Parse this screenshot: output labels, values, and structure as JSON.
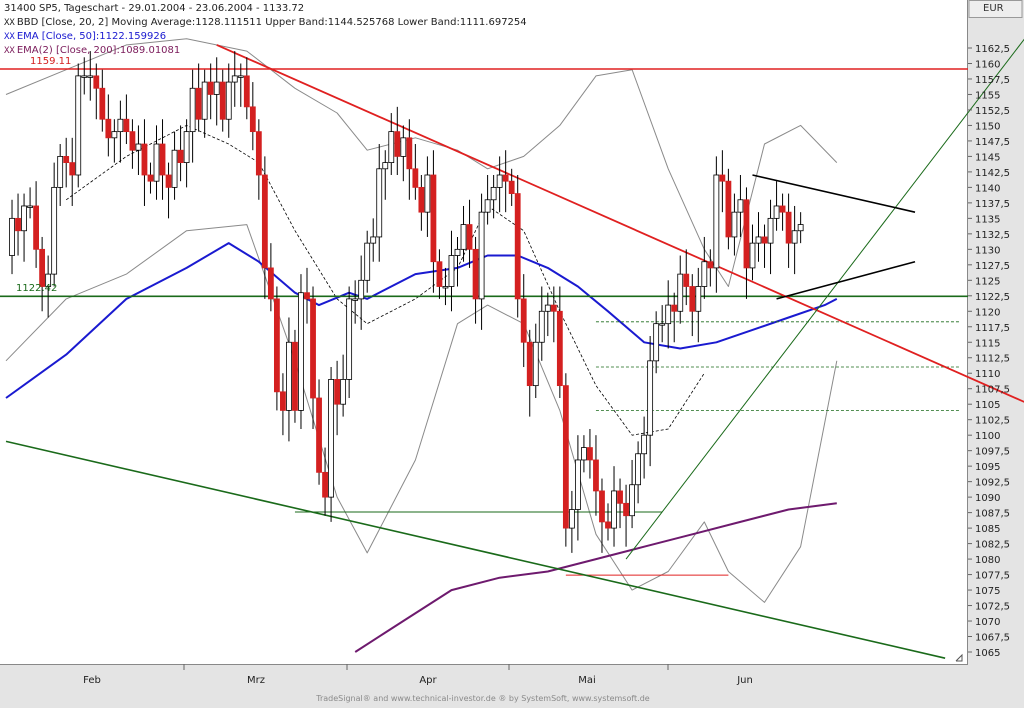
{
  "header": {
    "line1": "31400  SP5, Tageschart - 29.01.2004 - 23.06.2004 - 1133.72",
    "line2": "BBD [Close, 20, 2] Moving Average:1128.111511 Upper Band:1144.525768 Lower Band:1111.697254",
    "line3": "EMA [Close, 50]:1122.159926",
    "line4": "EMA(2) [Close, 200]:1089.01081",
    "xx": "XX"
  },
  "currency": "EUR",
  "levels": {
    "resistance": "1159.11",
    "support": "1122.42"
  },
  "footer": "TradeSignal® and www.technical-investor.de ® by SystemSoft, www.systemsoft.de",
  "colors": {
    "up_candle": "#ffffff",
    "down_candle": "#d42020",
    "wick": "#000000",
    "ema50": "#1a1ad0",
    "ema200": "#6e1a6e",
    "bollinger": "#8a8a8a",
    "ma20": "#000000",
    "trend_red": "#e02020",
    "trend_green": "#1a6a1a",
    "triangle": "#000000"
  },
  "chart_data": {
    "type": "candlestick",
    "title": "31400  SP5, Tageschart - 29.01.2004 - 23.06.2004 - 1133.72",
    "x_tick_labels": [
      "Feb",
      "Mrz",
      "Apr",
      "Mai",
      "Jun"
    ],
    "y_ticks": [
      "1162,5",
      "1160",
      "1157,5",
      "1155",
      "1152,5",
      "1150",
      "1147,5",
      "1145",
      "1142,5",
      "1140",
      "1137,5",
      "1135",
      "1132,5",
      "1130",
      "1127,5",
      "1125",
      "1122,5",
      "1120",
      "1117,5",
      "1115",
      "1112,5",
      "1110",
      "1107,5",
      "1105",
      "1102,5",
      "1100",
      "1097,5",
      "1095",
      "1092,5",
      "1090",
      "1087,5",
      "1085",
      "1082,5",
      "1080",
      "1077,5",
      "1075",
      "1072,5",
      "1070",
      "1067,5",
      "1065"
    ],
    "ylim": [
      1063.5,
      1164.5
    ],
    "candles_close": [
      1129,
      1135,
      1133,
      1137,
      1137,
      1130,
      1124,
      1126,
      1140,
      1145,
      1144,
      1142,
      1158,
      1158,
      1158,
      1156,
      1151,
      1148,
      1149,
      1151,
      1149,
      1146,
      1147,
      1142,
      1141,
      1147,
      1142,
      1140,
      1146,
      1144,
      1149,
      1156,
      1151,
      1157,
      1155,
      1157,
      1151,
      1157,
      1158,
      1158,
      1153,
      1149,
      1142,
      1127,
      1122,
      1107,
      1104,
      1115,
      1104,
      1123,
      1122,
      1106,
      1094,
      1090,
      1109,
      1105,
      1109,
      1122,
      1122,
      1125,
      1131,
      1132,
      1143,
      1144,
      1149,
      1145,
      1148,
      1143,
      1140,
      1136,
      1142,
      1128,
      1124,
      1124,
      1129,
      1130,
      1134,
      1130,
      1122,
      1136,
      1138,
      1140,
      1142,
      1141,
      1139,
      1122,
      1115,
      1108,
      1115,
      1120,
      1121,
      1120,
      1108,
      1085,
      1088,
      1096,
      1098,
      1096,
      1091,
      1086,
      1085,
      1091,
      1089,
      1087,
      1092,
      1097,
      1100,
      1112,
      1118,
      1118,
      1121,
      1120,
      1126,
      1124,
      1120,
      1124,
      1128,
      1127,
      1142,
      1141,
      1132,
      1136,
      1138,
      1127,
      1131,
      1132,
      1131,
      1135,
      1137,
      1136,
      1131,
      1133,
      1134
    ],
    "series": [
      {
        "name": "BBD Upper Band",
        "points": [
          [
            0,
            1155
          ],
          [
            10,
            1159
          ],
          [
            20,
            1163
          ],
          [
            30,
            1164
          ],
          [
            40,
            1162
          ],
          [
            48,
            1156
          ],
          [
            55,
            1152
          ],
          [
            60,
            1146
          ],
          [
            68,
            1148
          ],
          [
            75,
            1146
          ],
          [
            80,
            1143
          ],
          [
            86,
            1145
          ],
          [
            92,
            1150
          ],
          [
            98,
            1158
          ],
          [
            104,
            1159
          ],
          [
            110,
            1143
          ],
          [
            116,
            1130
          ],
          [
            120,
            1124
          ],
          [
            126,
            1147
          ],
          [
            132,
            1150
          ],
          [
            138,
            1144
          ]
        ]
      },
      {
        "name": "BBD Lower Band",
        "points": [
          [
            0,
            1112
          ],
          [
            10,
            1122
          ],
          [
            20,
            1126
          ],
          [
            30,
            1133
          ],
          [
            40,
            1134
          ],
          [
            48,
            1112
          ],
          [
            55,
            1090
          ],
          [
            60,
            1081
          ],
          [
            68,
            1096
          ],
          [
            75,
            1118
          ],
          [
            80,
            1121
          ],
          [
            86,
            1118
          ],
          [
            92,
            1104
          ],
          [
            98,
            1084
          ],
          [
            104,
            1075
          ],
          [
            110,
            1078
          ],
          [
            116,
            1086
          ],
          [
            120,
            1078
          ],
          [
            126,
            1073
          ],
          [
            132,
            1082
          ],
          [
            138,
            1112
          ]
        ]
      },
      {
        "name": "Moving Average",
        "points": [
          [
            10,
            1138
          ],
          [
            20,
            1145
          ],
          [
            30,
            1150
          ],
          [
            37,
            1147
          ],
          [
            42,
            1144
          ],
          [
            48,
            1133
          ],
          [
            55,
            1122
          ],
          [
            60,
            1118
          ],
          [
            68,
            1122
          ],
          [
            75,
            1127
          ],
          [
            80,
            1137
          ],
          [
            86,
            1133
          ],
          [
            92,
            1120
          ],
          [
            98,
            1108
          ],
          [
            104,
            1100
          ],
          [
            110,
            1101
          ],
          [
            116,
            1110
          ]
        ]
      },
      {
        "name": "EMA 50",
        "points": [
          [
            0,
            1106
          ],
          [
            10,
            1113
          ],
          [
            20,
            1122
          ],
          [
            30,
            1127
          ],
          [
            37,
            1131
          ],
          [
            42,
            1128
          ],
          [
            48,
            1123
          ],
          [
            52,
            1121
          ],
          [
            57,
            1123
          ],
          [
            60,
            1122
          ],
          [
            68,
            1126
          ],
          [
            75,
            1127
          ],
          [
            80,
            1129
          ],
          [
            85,
            1129
          ],
          [
            90,
            1127
          ],
          [
            95,
            1124
          ],
          [
            100,
            1120
          ],
          [
            106,
            1115
          ],
          [
            112,
            1114
          ],
          [
            118,
            1115
          ],
          [
            124,
            1117
          ],
          [
            130,
            1119
          ],
          [
            136,
            1121
          ],
          [
            138,
            1122
          ]
        ]
      },
      {
        "name": "EMA 200",
        "points": [
          [
            58,
            1065
          ],
          [
            66,
            1070
          ],
          [
            74,
            1075
          ],
          [
            82,
            1077
          ],
          [
            90,
            1078
          ],
          [
            98,
            1080
          ],
          [
            106,
            1082
          ],
          [
            114,
            1084
          ],
          [
            122,
            1086
          ],
          [
            130,
            1088
          ],
          [
            138,
            1089
          ]
        ]
      }
    ],
    "trend_lines": [
      {
        "name": "red downtrend",
        "from": [
          35,
          1163
        ],
        "to": [
          170,
          1105
        ]
      },
      {
        "name": "green lower channel",
        "from": [
          0,
          1099
        ],
        "to": [
          156,
          1064
        ]
      },
      {
        "name": "green uptrend",
        "from": [
          103,
          1080
        ],
        "to": [
          170,
          1165
        ]
      },
      {
        "name": "resistance 1159.11",
        "value": 1159.11
      },
      {
        "name": "support 1122.42",
        "value": 1122.42
      },
      {
        "name": "triangle upper",
        "from": [
          124,
          1142
        ],
        "to": [
          151,
          1136
        ]
      },
      {
        "name": "triangle lower",
        "from": [
          128,
          1122
        ],
        "to": [
          151,
          1128
        ]
      }
    ]
  }
}
